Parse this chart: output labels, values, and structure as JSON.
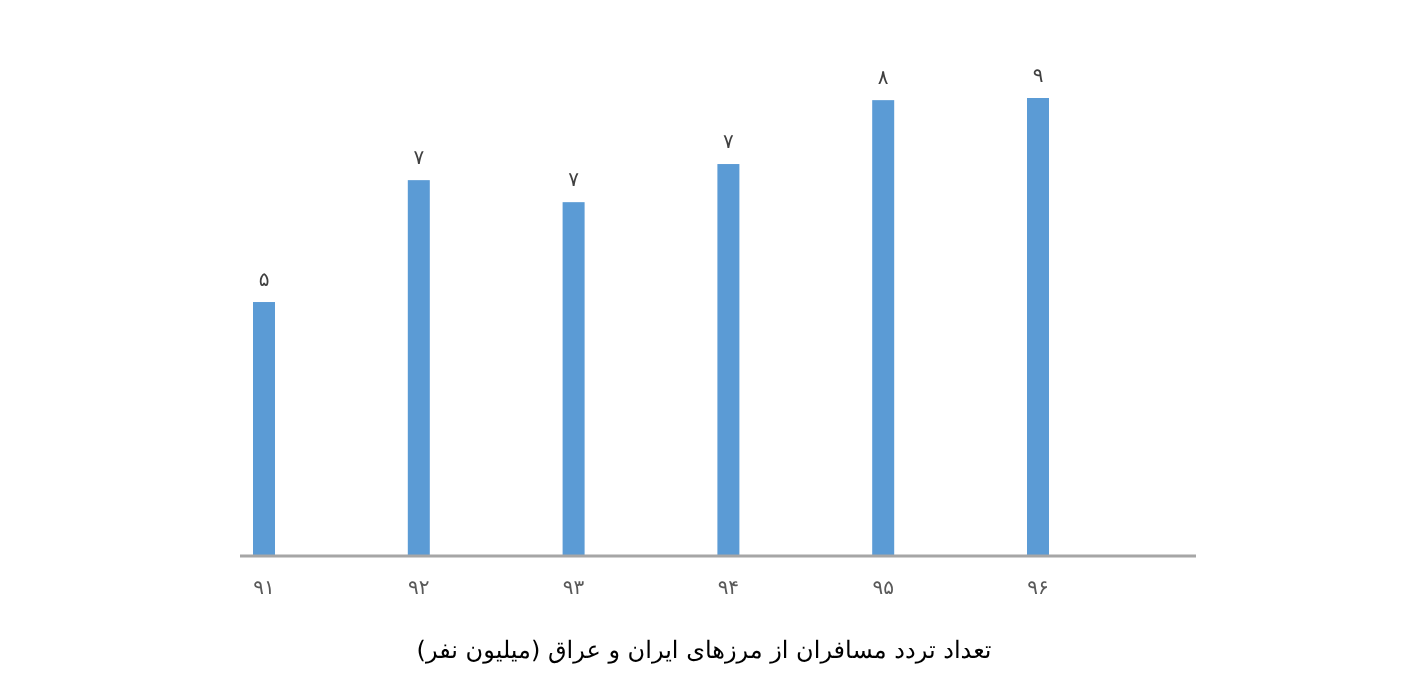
{
  "chart_data": {
    "type": "bar",
    "title": "تعداد تردد مسافران از مرزهای ایران و عراق (میلیون نفر)",
    "categories": [
      "۹۱",
      "۹۲",
      "۹۳",
      "۹۴",
      "۹۵",
      "۹۶"
    ],
    "values": [
      4.73,
      7.0,
      6.59,
      7.3,
      8.49,
      8.53
    ],
    "value_labels": [
      "۵",
      "۷",
      "۷",
      "۷",
      "۸",
      "۹"
    ],
    "color": "#5b9bd5"
  }
}
